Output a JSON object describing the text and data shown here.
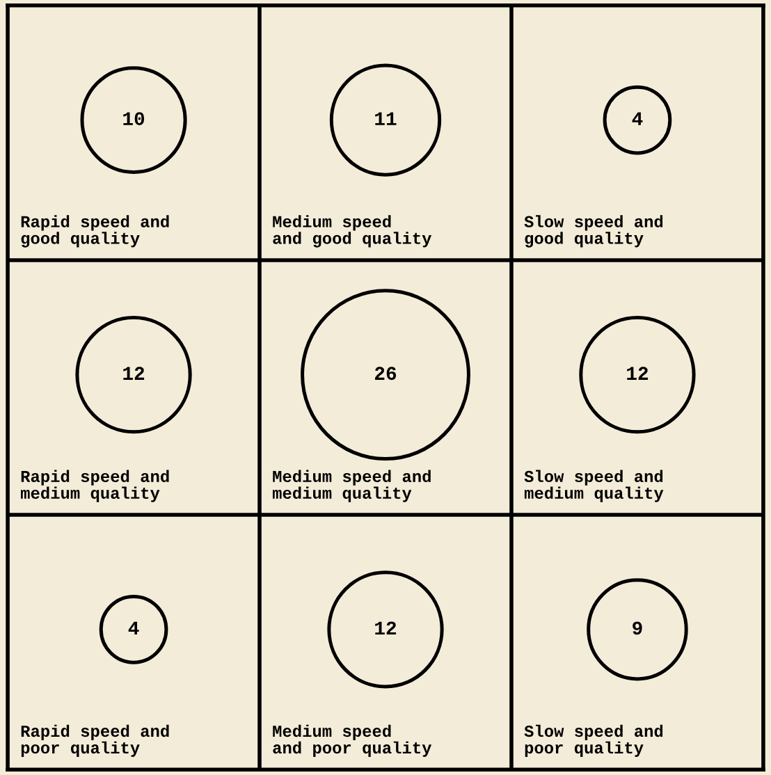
{
  "chart_data": {
    "type": "other",
    "categories": [
      "Rapid speed and\ngood quality",
      "Medium speed\nand good quality",
      "Slow speed and\ngood quality",
      "Rapid speed and\nmedium quality",
      "Medium speed and\nmedium quality",
      "Slow speed and\nmedium quality",
      "Rapid speed and\npoor quality",
      "Medium speed\nand poor quality",
      "Slow speed and\npoor quality"
    ],
    "values": [
      10,
      11,
      4,
      12,
      26,
      12,
      4,
      12,
      9
    ],
    "data_labels": true
  }
}
